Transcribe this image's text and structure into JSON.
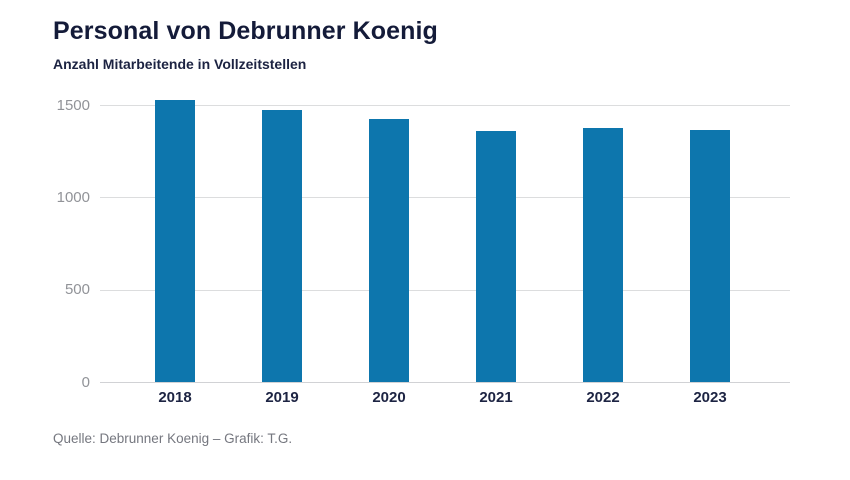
{
  "chart_data": {
    "type": "bar",
    "title": "Personal von Debrunner Koenig",
    "subtitle": "Anzahl Mitarbeitende in Vollzeitstellen",
    "categories": [
      "2018",
      "2019",
      "2020",
      "2021",
      "2022",
      "2023"
    ],
    "values": [
      1530,
      1475,
      1425,
      1360,
      1380,
      1370
    ],
    "yticks": [
      0,
      500,
      1000,
      1500
    ],
    "yticklabels": [
      "0",
      "500",
      "1000",
      "1500"
    ],
    "ylim": [
      0,
      1580
    ],
    "xlabel": "",
    "ylabel": "",
    "grid": "horizontal",
    "legend": "none",
    "bar_color": "#0d76ad",
    "source": "Quelle: Debrunner Koenig – Grafik: T.G."
  },
  "colors": {
    "background": "#ffffff",
    "title": "#141b39",
    "subtitle": "#1c2342",
    "axis_tick_label": "#919398",
    "category_label": "#1d2443",
    "gridline": "#dcddde",
    "baseline": "#d1d2d5",
    "bar": "#0d76ad",
    "source": "#75777f"
  }
}
